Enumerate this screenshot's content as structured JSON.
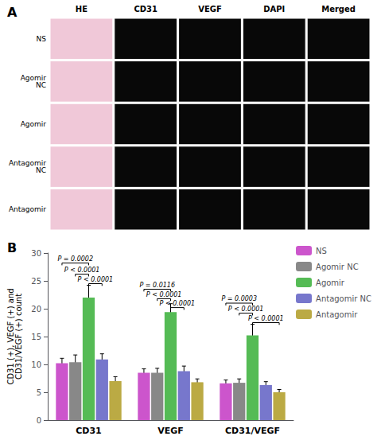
{
  "chart_data": [
    {
      "type": "image_grid",
      "title": "A",
      "x": [
        "HE",
        "CD31",
        "VEGF",
        "DAPI",
        "Merged"
      ],
      "y": [
        "NS",
        "Agomir\nNC",
        "Agomir",
        "Antagomir\nNC",
        "Antagomir"
      ],
      "colors": [
        "#f0c8d8",
        "#080808",
        "#080808",
        "#080808",
        "#080808"
      ]
    },
    {
      "type": "bar",
      "title": "B",
      "categories": [
        "CD31",
        "VEGF",
        "CD31/VEGF"
      ],
      "series": [
        {
          "name": "NS",
          "color": "#cc55cc",
          "values": [
            10.2,
            8.5,
            6.6
          ],
          "errors": [
            0.9,
            0.7,
            0.6
          ]
        },
        {
          "name": "Agomir NC",
          "color": "#888888",
          "values": [
            10.4,
            8.5,
            6.7
          ],
          "errors": [
            1.3,
            0.8,
            0.7
          ]
        },
        {
          "name": "Agomir",
          "color": "#55bb55",
          "values": [
            22.0,
            19.4,
            15.2
          ],
          "errors": [
            2.2,
            1.5,
            2.0
          ]
        },
        {
          "name": "Antagomir NC",
          "color": "#7777cc",
          "values": [
            10.9,
            8.8,
            6.3
          ],
          "errors": [
            1.0,
            0.9,
            0.6
          ]
        },
        {
          "name": "Antagomir",
          "color": "#bbaa44",
          "values": [
            7.0,
            6.8,
            5.0
          ],
          "errors": [
            0.8,
            0.6,
            0.5
          ]
        }
      ],
      "ylabel": "CD31 (+), VEGF (+) and\nCD31/VEGF (+) count",
      "ylim": [
        0,
        30
      ],
      "yticks": [
        0,
        5,
        10,
        15,
        20,
        25,
        30
      ],
      "grid": false,
      "legend": "upper right",
      "annotations": [
        {
          "text": "P = 0.0002",
          "group": "CD31",
          "from": "NS",
          "to": "Agomir",
          "y": 28.2
        },
        {
          "text": "P < 0.0001",
          "group": "CD31",
          "from": "Agomir NC",
          "to": "Agomir",
          "y": 26.2
        },
        {
          "text": "P < 0.0001",
          "group": "CD31",
          "from": "Agomir",
          "to": "Antagomir NC",
          "y": 24.5
        },
        {
          "text": "P = 0.0116",
          "group": "VEGF",
          "from": "NS",
          "to": "Agomir",
          "y": 23.5
        },
        {
          "text": "P < 0.0001",
          "group": "VEGF",
          "from": "Agomir NC",
          "to": "Agomir",
          "y": 21.8
        },
        {
          "text": "P < 0.0001",
          "group": "VEGF",
          "from": "Agomir",
          "to": "Antagomir NC",
          "y": 20.2
        },
        {
          "text": "P = 0.0003",
          "group": "CD31/VEGF",
          "from": "NS",
          "to": "Agomir",
          "y": 21.0
        },
        {
          "text": "P < 0.0001",
          "group": "CD31/VEGF",
          "from": "Agomir NC",
          "to": "Agomir",
          "y": 19.2
        },
        {
          "text": "P < 0.0001",
          "group": "CD31/VEGF",
          "from": "Agomir",
          "to": "Antagomir",
          "y": 17.5
        }
      ]
    }
  ]
}
